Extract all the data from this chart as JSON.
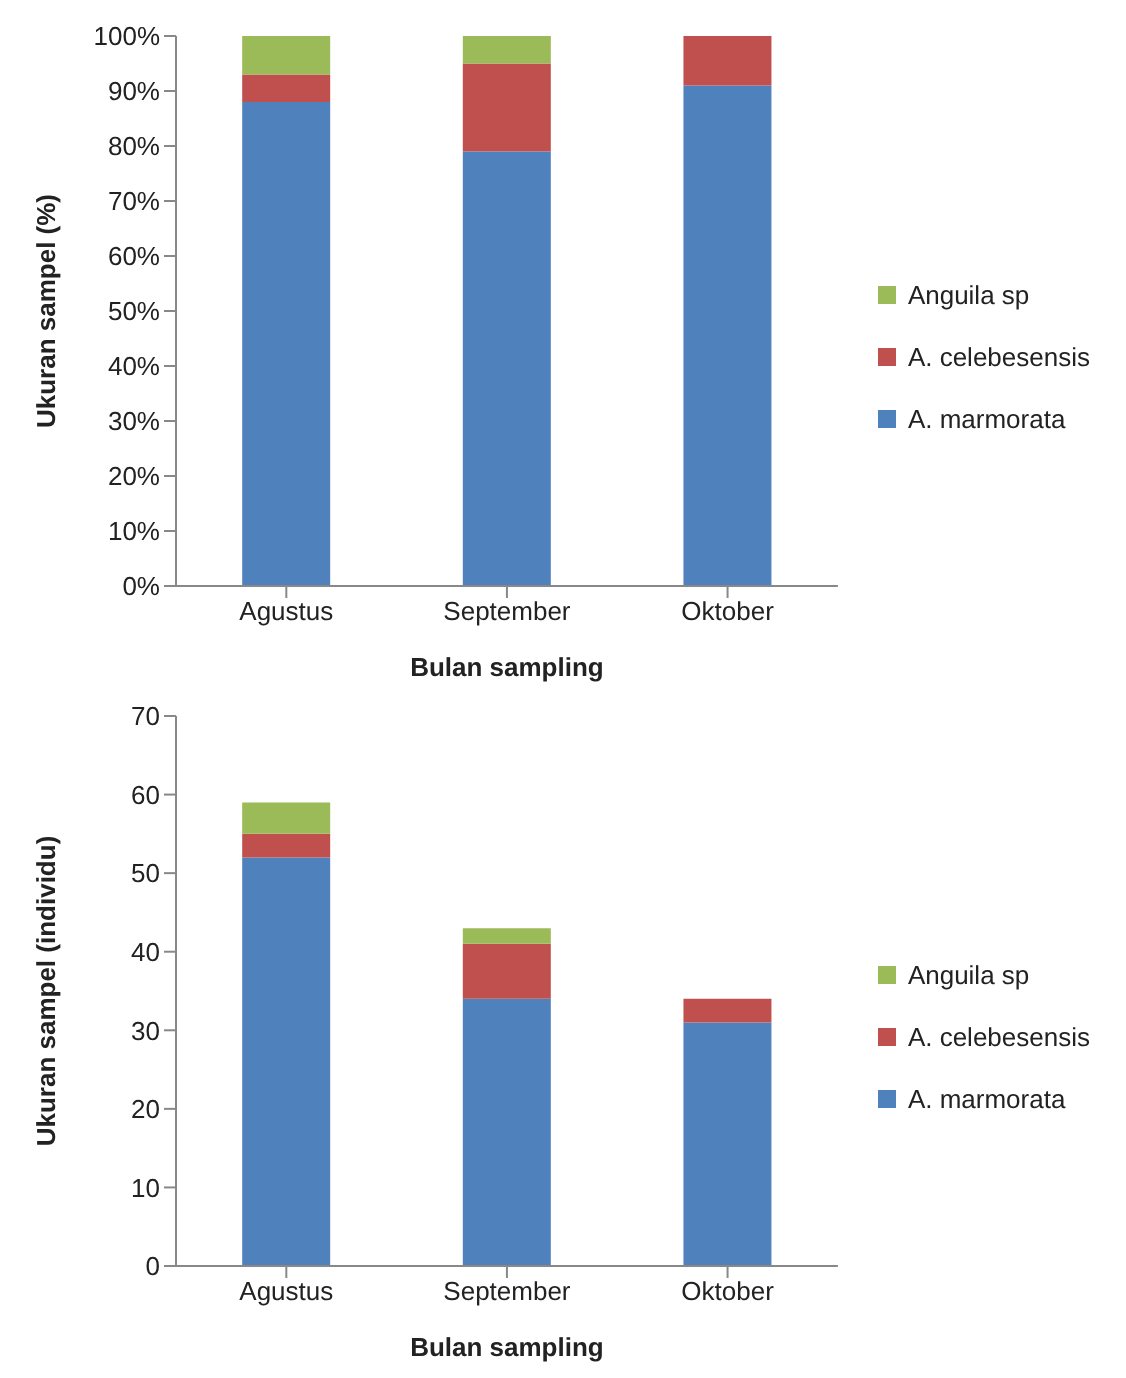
{
  "chart_data": [
    {
      "type": "bar",
      "stacked": true,
      "categories": [
        "Agustus",
        "September",
        "Oktober"
      ],
      "xlabel": "Bulan sampling",
      "ylabel": "Ukuran sampel (%)",
      "legend": "right",
      "ylim": [
        0,
        100
      ],
      "yticks": [
        {
          "value": 0,
          "label": "0%"
        },
        {
          "value": 10,
          "label": "10%"
        },
        {
          "value": 20,
          "label": "20%"
        },
        {
          "value": 30,
          "label": "30%"
        },
        {
          "value": 40,
          "label": "40%"
        },
        {
          "value": 50,
          "label": "50%"
        },
        {
          "value": 60,
          "label": "60%"
        },
        {
          "value": 70,
          "label": "70%"
        },
        {
          "value": 80,
          "label": "80%"
        },
        {
          "value": 90,
          "label": "90%"
        },
        {
          "value": 100,
          "label": "100%"
        }
      ],
      "series": [
        {
          "name": "A. marmorata",
          "color": "#4f81bd",
          "values": [
            88,
            79,
            91
          ]
        },
        {
          "name": "A. celebesensis",
          "color": "#c0504d",
          "values": [
            5,
            16,
            9
          ]
        },
        {
          "name": "Anguila sp",
          "color": "#9bbb59",
          "values": [
            7,
            5,
            0
          ]
        }
      ]
    },
    {
      "type": "bar",
      "stacked": true,
      "categories": [
        "Agustus",
        "September",
        "Oktober"
      ],
      "xlabel": "Bulan sampling",
      "ylabel": "Ukuran sampel (individu)",
      "legend": "right",
      "ylim": [
        0,
        70
      ],
      "yticks": [
        0,
        10,
        20,
        30,
        40,
        50,
        60,
        70
      ],
      "series": [
        {
          "name": "A. marmorata",
          "color": "#4f81bd",
          "values": [
            52,
            34,
            31
          ]
        },
        {
          "name": "A. celebesensis",
          "color": "#c0504d",
          "values": [
            3,
            7,
            3
          ]
        },
        {
          "name": "Anguila sp",
          "color": "#9bbb59",
          "values": [
            4,
            2,
            0
          ]
        }
      ]
    }
  ]
}
